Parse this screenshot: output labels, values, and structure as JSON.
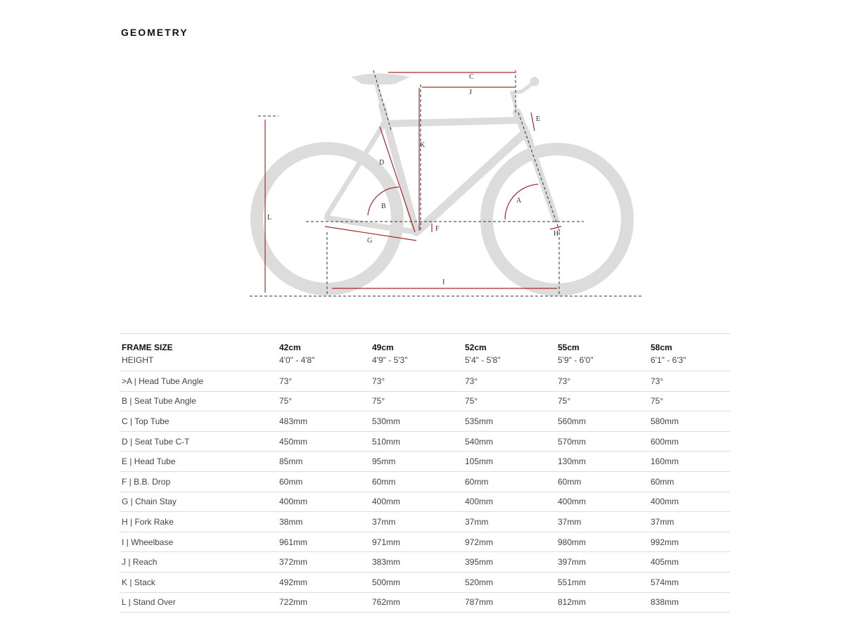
{
  "title": "GEOMETRY",
  "diagram": {
    "labels": {
      "A": "A",
      "B": "B",
      "C": "C",
      "D": "D",
      "E": "E",
      "F": "F",
      "G": "G",
      "H": "H",
      "I": "I",
      "J": "J",
      "K": "K",
      "L": "L"
    },
    "frame_color": "#d6d6d6",
    "dimension_color": "#a52a2a"
  },
  "table": {
    "header": {
      "label": "FRAME SIZE",
      "sizes": [
        "42cm",
        "49cm",
        "52cm",
        "55cm",
        "58cm"
      ]
    },
    "height": {
      "label": "HEIGHT",
      "values": [
        "4'0\" - 4'8\"",
        "4'9\" - 5'3\"",
        "5'4\" - 5'8\"",
        "5'9\" - 6'0\"",
        "6'1\" - 6'3\""
      ]
    },
    "rows": [
      {
        "label": ">A | Head Tube Angle",
        "values": [
          "73°",
          "73°",
          "73°",
          "73°",
          "73°"
        ]
      },
      {
        "label": "B | Seat Tube Angle",
        "values": [
          "75°",
          "75°",
          "75°",
          "75°",
          "75°"
        ]
      },
      {
        "label": "C | Top Tube",
        "values": [
          "483mm",
          "530mm",
          "535mm",
          "560mm",
          "580mm"
        ]
      },
      {
        "label": "D | Seat Tube C-T",
        "values": [
          "450mm",
          "510mm",
          "540mm",
          "570mm",
          "600mm"
        ]
      },
      {
        "label": "E | Head Tube",
        "values": [
          "85mm",
          "95mm",
          "105mm",
          "130mm",
          "160mm"
        ]
      },
      {
        "label": "F | B.B. Drop",
        "values": [
          "60mm",
          "60mm",
          "60mm",
          "60mm",
          "60mm"
        ]
      },
      {
        "label": "G | Chain Stay",
        "values": [
          "400mm",
          "400mm",
          "400mm",
          "400mm",
          "400mm"
        ]
      },
      {
        "label": "H | Fork Rake",
        "values": [
          "38mm",
          "37mm",
          "37mm",
          "37mm",
          "37mm"
        ]
      },
      {
        "label": "I | Wheelbase",
        "values": [
          "961mm",
          "971mm",
          "972mm",
          "980mm",
          "992mm"
        ]
      },
      {
        "label": "J | Reach",
        "values": [
          "372mm",
          "383mm",
          "395mm",
          "397mm",
          "405mm"
        ]
      },
      {
        "label": "K | Stack",
        "values": [
          "492mm",
          "500mm",
          "520mm",
          "551mm",
          "574mm"
        ]
      },
      {
        "label": "L | Stand Over",
        "values": [
          "722mm",
          "762mm",
          "787mm",
          "812mm",
          "838mm"
        ]
      }
    ]
  }
}
